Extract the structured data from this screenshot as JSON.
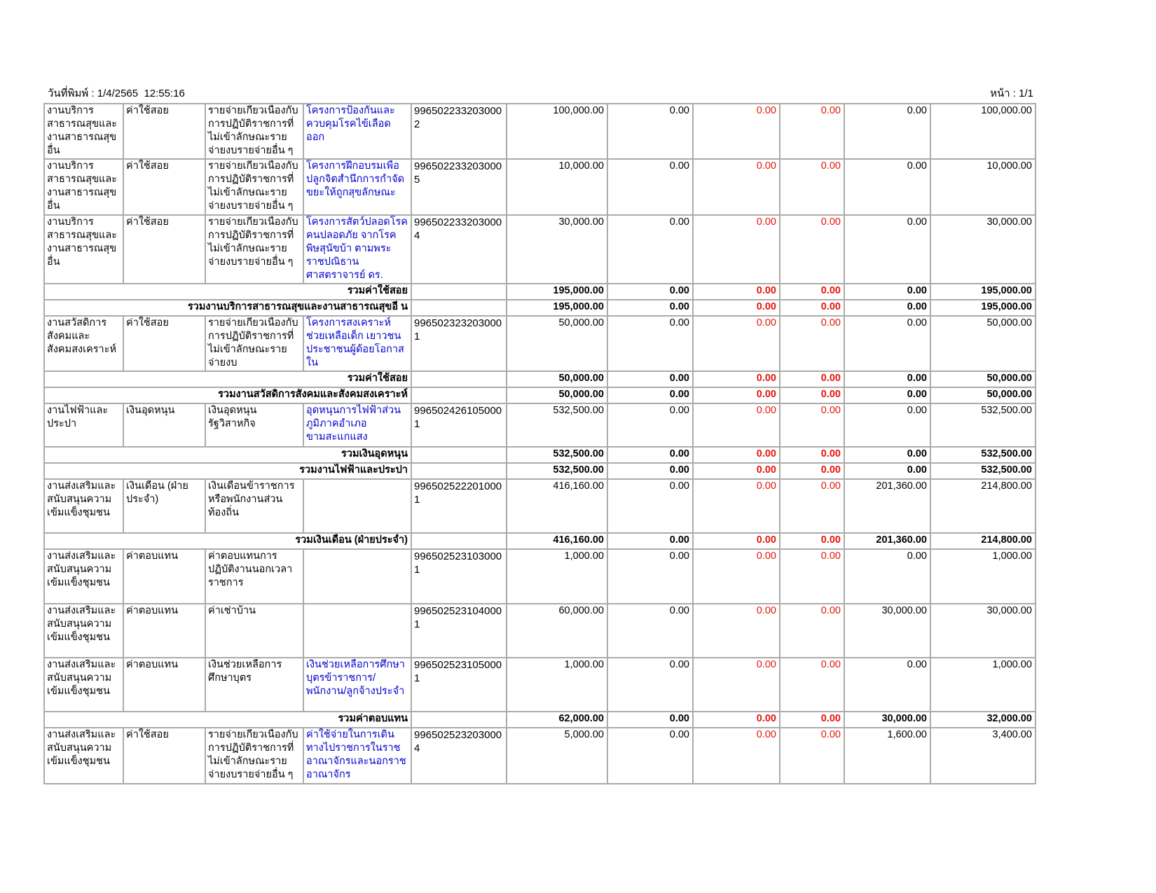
{
  "header": {
    "print_date": "วันที่พิมพ์ : 1/4/2565  12:55:16",
    "page": "หน้า : 1/1"
  },
  "colors": {
    "background": "#ffffff",
    "text": "#000000",
    "grid": "#ababab",
    "project_text": "#0000cc",
    "red_amount_text": "#e8140c"
  },
  "table": {
    "rows": [
      {
        "kind": "data",
        "cells": [
          "งานบริการสาธารณสุขและงานสาธารณสุขอื่น",
          "ค่าใช้สอย",
          "รายจ่ายเกี่ยวเนื่องกับการปฏิบัติราชการที่ไม่เข้าลักษณะรายจ่ายงบรายจ่ายอื่น ๆ",
          "โครงการป้องกันและควบคุมโรคไข้เลือดออก",
          "9965022332030002",
          "100,000.00",
          "0.00",
          "0.00",
          "0.00",
          "0.00",
          "100,000.00"
        ]
      },
      {
        "kind": "data",
        "cells": [
          "งานบริการสาธารณสุขและงานสาธารณสุขอื่น",
          "ค่าใช้สอย",
          "รายจ่ายเกี่ยวเนื่องกับการปฏิบัติราชการที่ไม่เข้าลักษณะรายจ่ายงบรายจ่ายอื่น ๆ",
          "โครงการฝึกอบรมเพื่อปลูกจิตสำนึกการกำจัดขยะให้ถูกสุขลักษณะ",
          "9965022332030005",
          "10,000.00",
          "0.00",
          "0.00",
          "0.00",
          "0.00",
          "10,000.00"
        ]
      },
      {
        "kind": "data",
        "cells": [
          "งานบริการสาธารณสุขและงานสาธารณสุขอื่น",
          "ค่าใช้สอย",
          "รายจ่ายเกี่ยวเนื่องกับการปฏิบัติราชการที่ไม่เข้าลักษณะรายจ่ายงบรายจ่ายอื่น ๆ",
          "โครงการสัตว์ปลอดโรค คนปลอดภัย จากโรคพิษสุนัขบ้า ตามพระราชปณิธาน ศาสตราจารย์ ดร.",
          "9965022332030004",
          "30,000.00",
          "0.00",
          "0.00",
          "0.00",
          "0.00",
          "30,000.00"
        ]
      },
      {
        "kind": "summary",
        "cells": [
          "รวมค่าใช้สอย",
          "",
          "195,000.00",
          "0.00",
          "0.00",
          "0.00",
          "0.00",
          "195,000.00"
        ]
      },
      {
        "kind": "summary",
        "cells": [
          "รวมงานบริการสาธารณสุขและงานสาธารณสุขอี น",
          "",
          "195,000.00",
          "0.00",
          "0.00",
          "0.00",
          "0.00",
          "195,000.00"
        ]
      },
      {
        "kind": "data",
        "cells": [
          "งานสวัสดิการสังคมและสังคมสงเคราะห์",
          "ค่าใช้สอย",
          "รายจ่ายเกี่ยวเนื่องกับการปฏิบัติราชการที่ไม่เข้าลักษณะรายจ่ายงบ",
          "โครงการสงเคราะห์ช่วยเหลือเด็ก เยาวชน ประชาชนผู้ด้อยโอกาสใน",
          "9965023232030001",
          "50,000.00",
          "0.00",
          "0.00",
          "0.00",
          "0.00",
          "50,000.00"
        ]
      },
      {
        "kind": "summary",
        "cells": [
          "รวมค่าใช้สอย",
          "",
          "50,000.00",
          "0.00",
          "0.00",
          "0.00",
          "0.00",
          "50,000.00"
        ]
      },
      {
        "kind": "summary",
        "cells": [
          "รวมงานสวัสดิการสังคมและสังคมสงเคราะห์",
          "",
          "50,000.00",
          "0.00",
          "0.00",
          "0.00",
          "0.00",
          "50,000.00"
        ]
      },
      {
        "kind": "data",
        "cells": [
          "งานไฟฟ้าและประปา",
          "เงินอุดหนุน",
          "เงินอุดหนุนรัฐวิสาหกิจ",
          "อุดหนุนการไฟฟ้าส่วนภูมิภาคอำเภอขามสะแกแสง",
          "9965024261050001",
          "532,500.00",
          "0.00",
          "0.00",
          "0.00",
          "0.00",
          "532,500.00"
        ]
      },
      {
        "kind": "summary",
        "cells": [
          "รวมเงินอุดหนุน",
          "",
          "532,500.00",
          "0.00",
          "0.00",
          "0.00",
          "0.00",
          "532,500.00"
        ]
      },
      {
        "kind": "summary",
        "cells": [
          "รวมงานไฟฟ้าและประปา",
          "",
          "532,500.00",
          "0.00",
          "0.00",
          "0.00",
          "0.00",
          "532,500.00"
        ]
      },
      {
        "kind": "data",
        "cells": [
          "งานส่งเสริมและสนับสนุนความเข้มแข็งชุมชน",
          "เงินเดือน (ฝ่ายประจำ)",
          "เงินเดือนข้าราชการหรือพนักงานส่วนท้องถิ่น",
          "",
          "9965025222010001",
          "416,160.00",
          "0.00",
          "0.00",
          "0.00",
          "201,360.00",
          "214,800.00"
        ]
      },
      {
        "kind": "summary",
        "cells": [
          "รวมเงินเดือน (ฝ่ายประจำ)",
          "",
          "416,160.00",
          "0.00",
          "0.00",
          "0.00",
          "201,360.00",
          "214,800.00"
        ]
      },
      {
        "kind": "data",
        "cells": [
          "งานส่งเสริมและสนับสนุนความเข้มแข็งชุมชน",
          "ค่าตอบแทน",
          "ค่าตอบแทนการปฏิบัติงานนอกเวลาราชการ",
          "",
          "9965025231030001",
          "1,000.00",
          "0.00",
          "0.00",
          "0.00",
          "0.00",
          "1,000.00"
        ]
      },
      {
        "kind": "data",
        "cells": [
          "งานส่งเสริมและสนับสนุนความเข้มแข็งชุมชน",
          "ค่าตอบแทน",
          "ค่าเช่าบ้าน",
          "",
          "9965025231040001",
          "60,000.00",
          "0.00",
          "0.00",
          "0.00",
          "30,000.00",
          "30,000.00"
        ]
      },
      {
        "kind": "data",
        "cells": [
          "งานส่งเสริมและสนับสนุนความเข้มแข็งชุมชน",
          "ค่าตอบแทน",
          "เงินช่วยเหลือการศึกษาบุตร",
          "เงินช่วยเหลือการศึกษาบุตรข้าราชการ/พนักงาน/ลูกจ้างประจำ",
          "9965025231050001",
          "1,000.00",
          "0.00",
          "0.00",
          "0.00",
          "0.00",
          "1,000.00"
        ]
      },
      {
        "kind": "summary",
        "cells": [
          "รวมค่าตอบแทน",
          "",
          "62,000.00",
          "0.00",
          "0.00",
          "0.00",
          "30,000.00",
          "32,000.00"
        ]
      },
      {
        "kind": "data",
        "cells": [
          "งานส่งเสริมและสนับสนุนความเข้มแข็งชุมชน",
          "ค่าใช้สอย",
          "รายจ่ายเกี่ยวเนื่องกับการปฏิบัติราชการที่ไม่เข้าลักษณะรายจ่ายงบรายจ่ายอื่น ๆ",
          "ค่าใช้จ่ายในการเดินทางไปราชการในราชอาณาจักรและนอกราชอาณาจักร",
          "9965025232030004",
          "5,000.00",
          "0.00",
          "0.00",
          "0.00",
          "1,600.00",
          "3,400.00"
        ]
      }
    ]
  }
}
